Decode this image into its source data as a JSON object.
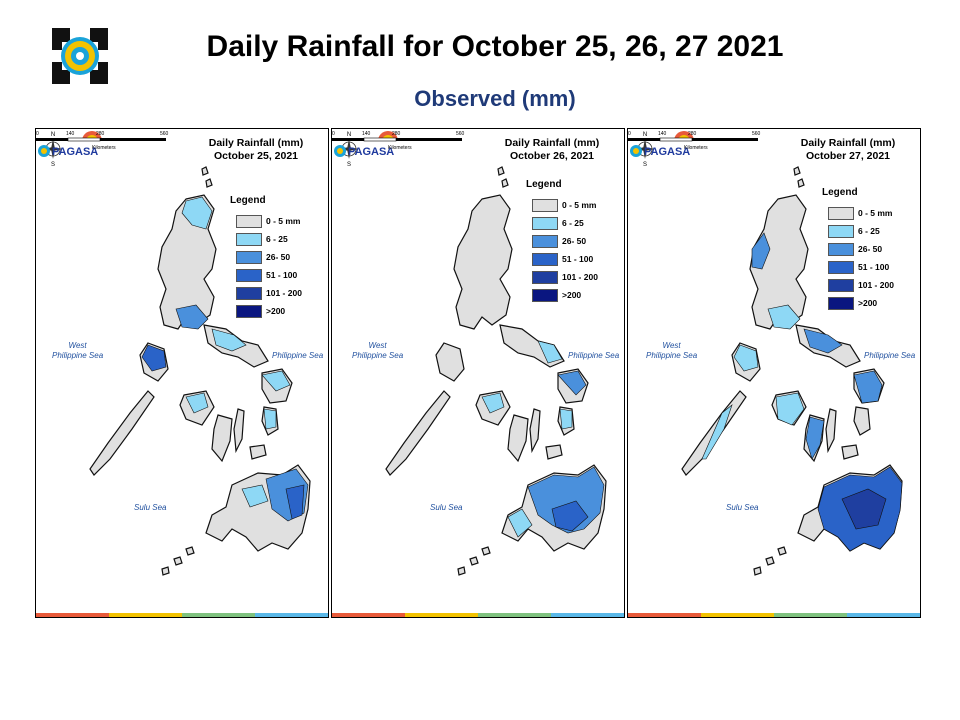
{
  "title": "Daily Rainfall for October 25, 26, 27 2021",
  "subtitle": "Observed (mm)",
  "legend": {
    "title": "Legend",
    "items": [
      {
        "label": "0 - 5 mm",
        "color": "#e0e0e0"
      },
      {
        "label": "6 - 25",
        "color": "#8ed8f5"
      },
      {
        "label": "26- 50",
        "color": "#4a90dc"
      },
      {
        "label": "51 - 100",
        "color": "#2a63c8"
      },
      {
        "label": "101 - 200",
        "color": "#1f3fa0"
      },
      {
        "label": ">200",
        "color": "#0a1680"
      }
    ]
  },
  "seas": {
    "west": "West\nPhilippine Sea",
    "east": "Philippine Sea",
    "sulu": "Sulu Sea"
  },
  "scale": {
    "ticks": [
      "0",
      "140",
      "280",
      "560"
    ],
    "unit": "Kilometers"
  },
  "maps": [
    {
      "title": "Daily Rainfall (mm)\nOctober 25, 2021"
    },
    {
      "title": "Daily Rainfall (mm)\nOctober 26, 2021"
    },
    {
      "title": "Daily Rainfall (mm)\nOctober 27, 2021"
    }
  ],
  "brand": "PAGASA"
}
